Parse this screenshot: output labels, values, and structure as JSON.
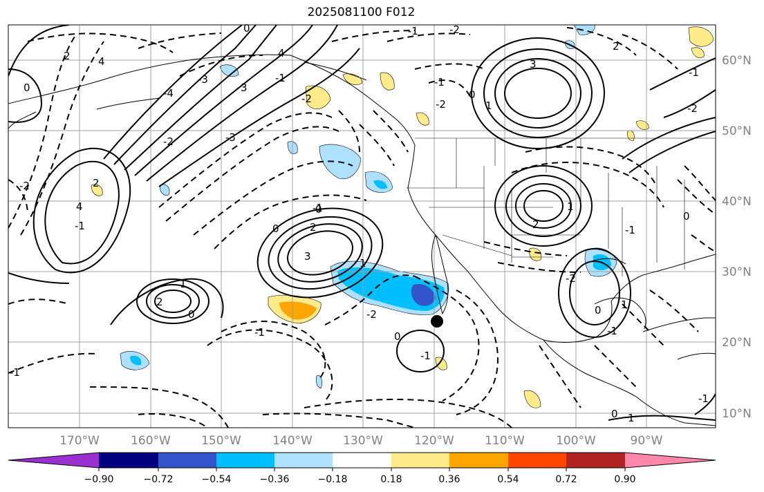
{
  "title": "2025081100 F012",
  "lat_labels": [
    "60°N",
    "50°N",
    "40°N",
    "30°N",
    "20°N",
    "10°N"
  ],
  "lon_labels": [
    "170°W",
    "160°W",
    "150°W",
    "140°W",
    "130°W",
    "120°W",
    "110°W",
    "100°W",
    "90°W"
  ],
  "colorbar": {
    "colors": [
      "#9b30d0",
      "#000080",
      "#3355cc",
      "#00bfff",
      "#aee0ff",
      "#ffffff",
      "#ffeb8a",
      "#ffa500",
      "#ff4500",
      "#b22222",
      "#ff88aa"
    ],
    "tick_labels": [
      "−0.90",
      "−0.72",
      "−0.54",
      "−0.36",
      "−0.18",
      "0.18",
      "0.36",
      "0.54",
      "0.72",
      "0.90"
    ]
  },
  "contour_labels": [
    "2",
    "4",
    "0",
    "-2",
    "2",
    "3",
    "4",
    "-3",
    "-2",
    "-1",
    "-2",
    "-3",
    "-4",
    "-2",
    "-1",
    "0",
    "2",
    "3",
    "-1",
    "0",
    "-2",
    "1",
    "-1",
    "-2",
    "-1",
    "0",
    "-1",
    "1",
    "2",
    "0",
    "-1",
    "4",
    "3",
    "2",
    "1",
    "0",
    "-2",
    "-1",
    "0",
    "2",
    "1",
    "-1",
    "0",
    "-2",
    "-1",
    "0",
    "1",
    "-1",
    "-1",
    "0",
    "1"
  ],
  "marker": "filled-circle"
}
